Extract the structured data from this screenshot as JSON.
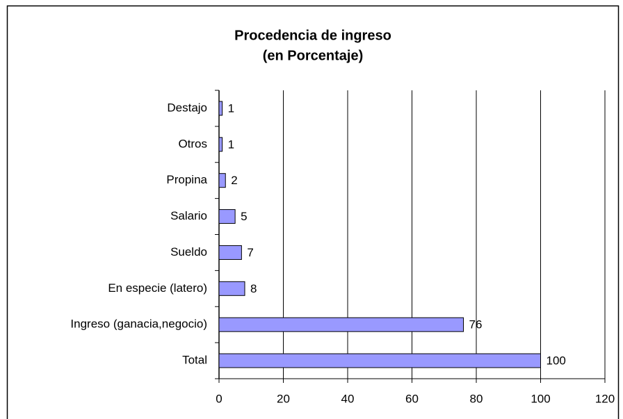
{
  "chart_data": {
    "type": "bar",
    "orientation": "horizontal",
    "title": "Procedencia de ingreso",
    "subtitle": "(en Porcentaje)",
    "categories": [
      "Destajo",
      "Otros",
      "Propina",
      "Salario",
      "Sueldo",
      "En especie (latero)",
      "Ingreso (ganacia,negocio)",
      "Total"
    ],
    "values": [
      1,
      1,
      2,
      5,
      7,
      8,
      76,
      100
    ],
    "color": "#9999ff",
    "xlim": [
      0,
      120
    ],
    "xticks": [
      0,
      20,
      40,
      60,
      80,
      100,
      120
    ],
    "grid": true
  }
}
